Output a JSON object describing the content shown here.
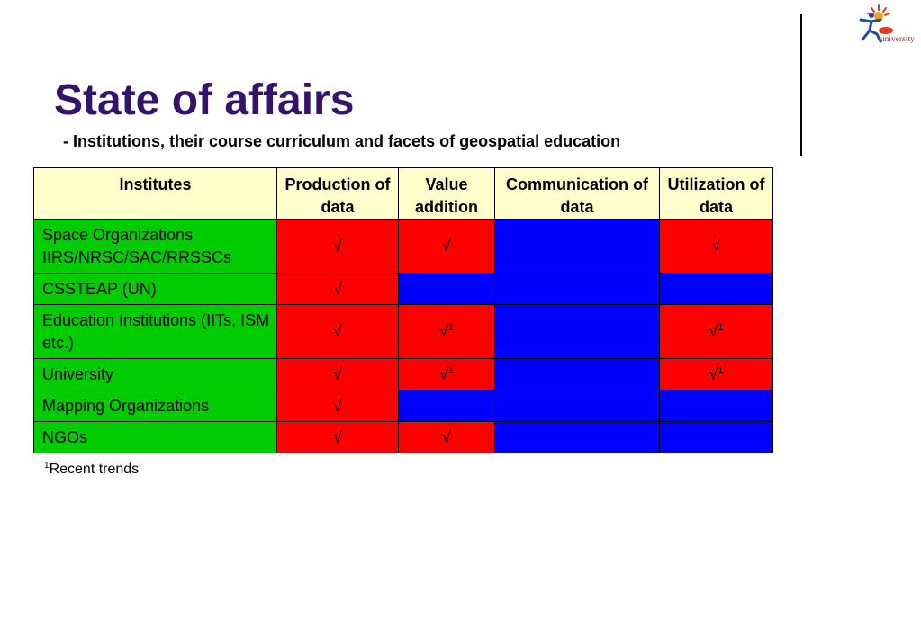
{
  "logo": {
    "wordmark": "university",
    "brand_color": "#b01818",
    "accent_color": "#1a4fa0",
    "icon": "running-figure-sun-logo"
  },
  "title": "State of affairs",
  "subtitle": "- Institutions, their course curriculum and facets of geospatial education",
  "colors": {
    "title": "#33136b",
    "header_bg": "#ffffcc",
    "institute_bg": "#00cc00",
    "present": "#ff0000",
    "absent": "#0000ff"
  },
  "table": {
    "headers": [
      "Institutes",
      "Production of data",
      "Value addition",
      "Communication of data",
      "Utilization of data"
    ],
    "check_mark": "√",
    "rows": [
      {
        "institute": "Space Organizations IIRS/NRSC/SAC/RRSSCs",
        "cells": [
          "√",
          "√",
          "",
          "√"
        ],
        "notes": [
          "",
          "",
          "",
          ""
        ]
      },
      {
        "institute": "CSSTEAP (UN)",
        "cells": [
          "√",
          "",
          "",
          ""
        ],
        "notes": [
          "",
          "",
          "",
          ""
        ]
      },
      {
        "institute": "Education Institutions (IITs, ISM etc.)",
        "cells": [
          "√",
          "√",
          "",
          "√"
        ],
        "notes": [
          "",
          "1",
          "",
          "1"
        ]
      },
      {
        "institute": "University",
        "cells": [
          "√",
          "√",
          "",
          "√"
        ],
        "notes": [
          "",
          "1",
          "",
          "1"
        ]
      },
      {
        "institute": "Mapping Organizations",
        "cells": [
          "√",
          "",
          "",
          ""
        ],
        "notes": [
          "",
          "",
          "",
          ""
        ]
      },
      {
        "institute": "NGOs",
        "cells": [
          "√",
          "√",
          "",
          ""
        ],
        "notes": [
          "",
          "",
          "",
          ""
        ]
      }
    ]
  },
  "footnote": {
    "marker": "1",
    "text": "Recent trends"
  }
}
